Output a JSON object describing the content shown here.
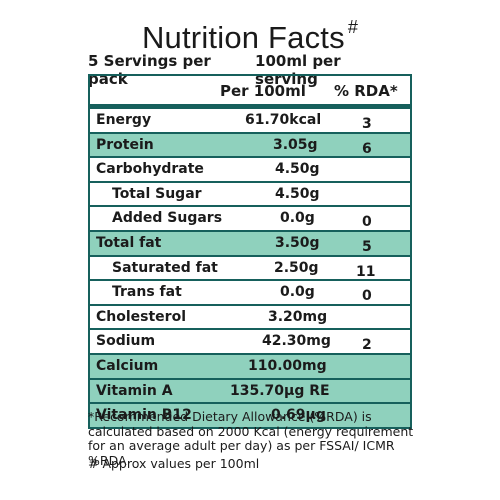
{
  "label": {
    "title": "Nutrition Facts",
    "title_mark": "#",
    "servings_left": "5 Servings per pack",
    "servings_right": "100ml per serving",
    "col_per": "Per 100ml",
    "col_rda": "% RDA*",
    "accent_color": "#16605c",
    "highlight_color": "#8fd1bd",
    "rows": [
      {
        "name": "Energy",
        "value": "61.70kcal",
        "rda": "3",
        "highlight": false,
        "indent": 0
      },
      {
        "name": "Protein",
        "value": "3.05g",
        "rda": "6",
        "highlight": true,
        "indent": 0
      },
      {
        "name": "Carbohydrate",
        "value": "4.50g",
        "rda": "",
        "highlight": false,
        "indent": 0
      },
      {
        "name": "Total Sugar",
        "value": "4.50g",
        "rda": "",
        "highlight": false,
        "indent": 1
      },
      {
        "name": "Added Sugars",
        "value": "0.0g",
        "rda": "0",
        "highlight": false,
        "indent": 1
      },
      {
        "name": "Total fat",
        "value": "3.50g",
        "rda": "5",
        "highlight": true,
        "indent": 0
      },
      {
        "name": "Saturated fat",
        "value": "2.50g",
        "rda": "11",
        "highlight": false,
        "indent": 1
      },
      {
        "name": "Trans fat",
        "value": "0.0g",
        "rda": "0",
        "highlight": false,
        "indent": 1
      },
      {
        "name": "Cholesterol",
        "value": "3.20mg",
        "rda": "",
        "highlight": false,
        "indent": 0
      },
      {
        "name": "Sodium",
        "value": "42.30mg",
        "rda": "2",
        "highlight": false,
        "indent": 0
      },
      {
        "name": "Calcium",
        "value": "110.00mg",
        "rda": "",
        "highlight": true,
        "indent": 0
      },
      {
        "name": "Vitamin A",
        "value": "135.70µg RE",
        "rda": "",
        "highlight": true,
        "indent": 0
      },
      {
        "name": "Vitamin B12",
        "value": "0.69µg",
        "rda": "",
        "highlight": true,
        "indent": 0
      }
    ],
    "footnote": "*Recommended Dietary Allowance (%RDA) is calculated based on 2000 Kcal (energy requirement for an average adult per day) as per FSSAI/ ICMR  %RDA",
    "approx_note": "# Approx values per 100ml"
  }
}
